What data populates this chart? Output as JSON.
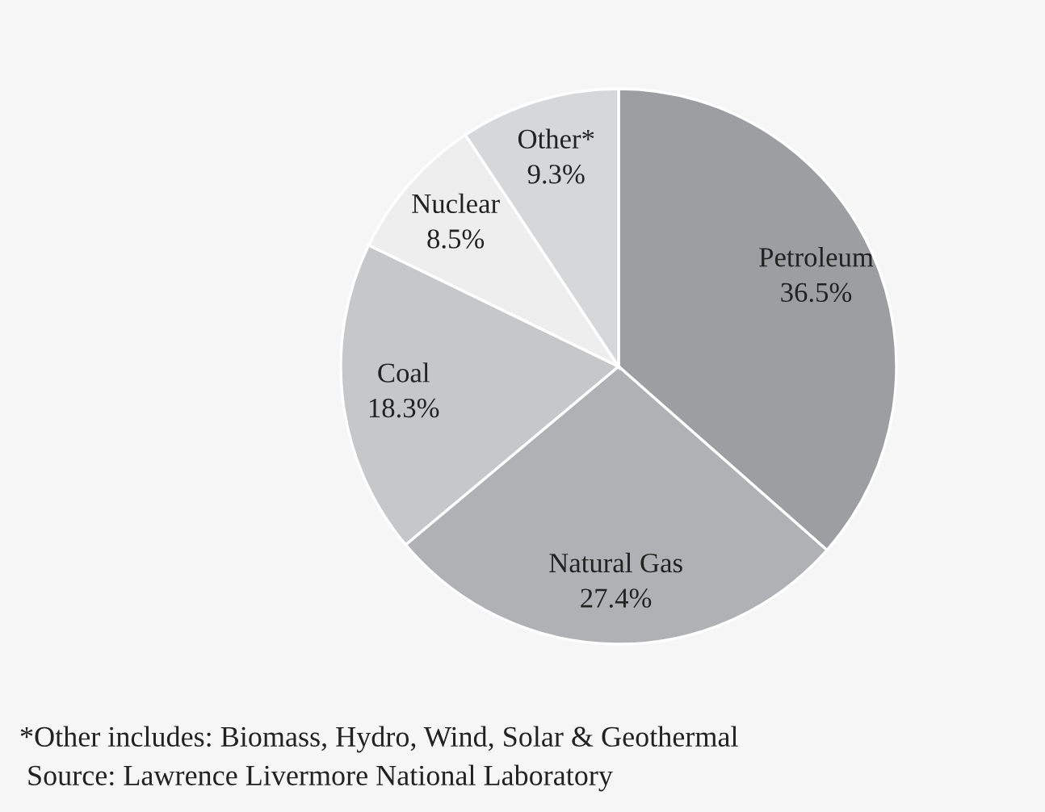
{
  "chart_data": {
    "type": "pie",
    "categories": [
      "Petroleum",
      "Natural Gas",
      "Coal",
      "Nuclear",
      "Other*"
    ],
    "values": [
      36.5,
      27.4,
      18.3,
      8.5,
      9.3
    ],
    "value_labels": [
      "36.5%",
      "27.4%",
      "18.3%",
      "8.5%",
      "9.3%"
    ],
    "colors": [
      "#9d9ea2",
      "#b0b1b4",
      "#c6c7c9",
      "#eeeeef",
      "#d6d7d9"
    ],
    "annotations": [
      "*Other includes: Biomass, Hydro, Wind, Solar & Geothermal",
      " Source: Lawrence Livermore National Laboratory"
    ]
  }
}
